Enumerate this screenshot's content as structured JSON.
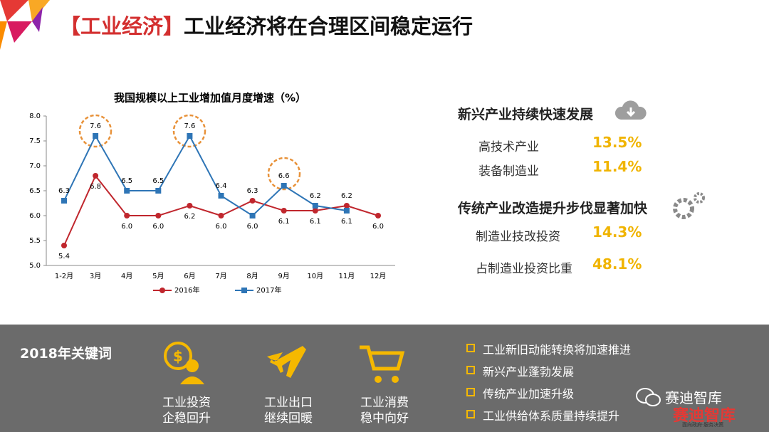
{
  "title_tag": "【工业经济】",
  "title": "工业经济将在合理区间稳定运行",
  "chart_data": {
    "type": "line",
    "title": "我国规模以上工业增加值月度增速（%）",
    "categories": [
      "1-2月",
      "3月",
      "4月",
      "5月",
      "6月",
      "7月",
      "8月",
      "9月",
      "10月",
      "11月",
      "12月"
    ],
    "series": [
      {
        "name": "2016年",
        "color": "#c0262d",
        "values": [
          5.4,
          6.8,
          6.0,
          6.0,
          6.2,
          6.0,
          6.3,
          6.1,
          6.1,
          6.2,
          6.0
        ],
        "value_labels": [
          "5.4",
          "6.8",
          "6.0",
          "6.0",
          "6.2",
          "6.0",
          "6.3",
          "6.1",
          "6.1",
          "6.2",
          "6.0"
        ]
      },
      {
        "name": "2017年",
        "color": "#2e75b6",
        "values": [
          6.3,
          7.6,
          6.5,
          6.5,
          7.6,
          6.4,
          6.0,
          6.6,
          6.2,
          6.1,
          null
        ],
        "value_labels": [
          "6.3",
          "7.6",
          "6.5",
          "6.5",
          "7.6",
          "6.4",
          "6.0",
          "6.6",
          "6.2",
          "6.1",
          null
        ]
      }
    ],
    "ylim": [
      5,
      8
    ],
    "yticks": [
      {
        "value": 5,
        "label": "5.0"
      },
      5.5,
      {
        "value": 6,
        "label": "6.0"
      },
      6.5,
      {
        "value": 7,
        "label": "7.0"
      },
      7.5,
      {
        "value": 8,
        "label": "8.0"
      }
    ],
    "legend": "bottom"
  },
  "panel": [
    {
      "heading": "新兴产业持续快速发展",
      "items": [
        {
          "label": "高技术产业",
          "value": "13.5%"
        },
        {
          "label": "装备制造业",
          "value": "11.4%"
        }
      ]
    },
    {
      "heading": "传统产业改造提升步伐显著加快",
      "items": [
        {
          "label": "制造业技改投资",
          "value": "14.3%"
        },
        {
          "label": "占制造业投资比重",
          "value": "48.1%"
        }
      ]
    }
  ],
  "keywords": {
    "title": "2018年关键词",
    "items": [
      [
        "工业投资",
        "企稳回升"
      ],
      [
        "工业出口",
        "继续回暖"
      ],
      [
        "工业消费",
        "稳中向好"
      ]
    ],
    "bullets": [
      "工业新旧动能转换将加速推进",
      "新兴产业蓬勃发展",
      "传统产业加速升级",
      "工业供给体系质量持续提升"
    ]
  },
  "watermark": {
    "text": "赛迪智库",
    "logo": "赛迪智库",
    "slogan": "面向政府·服务决策"
  }
}
